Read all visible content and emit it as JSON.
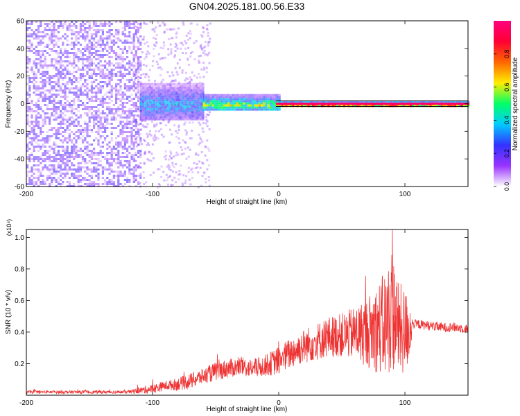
{
  "figure": {
    "title": "GN04.2025.181.00.56.E33"
  },
  "chart_data": [
    {
      "type": "heatmap",
      "title": "GN04.2025.181.00.56.E33",
      "xlabel": "Height of straight line (km)",
      "ylabel": "Frequency (Hz)",
      "xlim": [
        -200,
        150
      ],
      "ylim": [
        -60,
        60
      ],
      "x_ticks": [
        -200,
        -100,
        0,
        100
      ],
      "x_tick_labels": [
        "-200",
        "-100",
        "0",
        "100"
      ],
      "y_ticks": [
        -60,
        -40,
        -20,
        0,
        20,
        40,
        60
      ],
      "y_tick_labels": [
        "-60",
        "-40",
        "-20",
        "0",
        "20",
        "40",
        "60"
      ],
      "colorbar": {
        "label": "Normalized spectral amplitude",
        "range": [
          0,
          1
        ],
        "ticks": [
          0.0,
          0.2,
          0.4,
          0.6,
          0.8
        ],
        "tick_labels": [
          "0.0",
          "0.2",
          "0.4",
          "0.6",
          "0.8"
        ],
        "colormap": [
          "#ffffff",
          "#9933ff",
          "#3333ff",
          "#00ccff",
          "#00ff66",
          "#ffee00",
          "#ff6600",
          "#ff0033",
          "#ff0080"
        ]
      },
      "regions": [
        {
          "x_range": [
            -200,
            -110
          ],
          "freq_range": [
            -60,
            60
          ],
          "level": 0.15
        },
        {
          "x_range": [
            -110,
            -60
          ],
          "freq_range": [
            -12,
            15
          ],
          "level": 0.3
        },
        {
          "x_range": [
            -60,
            0
          ],
          "freq_range": [
            -5,
            7
          ],
          "level": 0.5
        },
        {
          "x_range": [
            0,
            150
          ],
          "freq_range": [
            -2,
            2
          ],
          "level": 0.9
        }
      ],
      "lines": [
        {
          "name": "carrier",
          "freq": 0,
          "color": "#ff0066"
        },
        {
          "name": "upper-bound",
          "freq": 2,
          "color": "#000000"
        },
        {
          "name": "lower-bound",
          "freq": -2,
          "color": "#000000"
        }
      ]
    },
    {
      "type": "line",
      "xlabel": "Height of straight line (km)",
      "ylabel": "SNR (10 * v/v)",
      "y_multiplier": "(x10⁴)",
      "xlim": [
        -200,
        150
      ],
      "ylim": [
        0,
        1.05
      ],
      "x_ticks": [
        -200,
        -100,
        0,
        100
      ],
      "x_tick_labels": [
        "-200",
        "-100",
        "0",
        "100"
      ],
      "y_ticks": [
        0.2,
        0.4,
        0.6,
        0.8,
        1.0
      ],
      "y_tick_labels": [
        "0.2",
        "0.4",
        "0.6",
        "0.8",
        "1.0"
      ],
      "color": "#ee3333",
      "series": [
        {
          "x": [
            -200,
            -180,
            -160,
            -140,
            -120,
            -110,
            -100,
            -90,
            -80,
            -70,
            -60,
            -50,
            -40,
            -30,
            -20,
            -10,
            0,
            10,
            20,
            30,
            40,
            50,
            60,
            70,
            80,
            85,
            90,
            95,
            100,
            104,
            106,
            110,
            120,
            130,
            140,
            150
          ],
          "values": [
            0.02,
            0.02,
            0.02,
            0.02,
            0.02,
            0.03,
            0.04,
            0.06,
            0.07,
            0.09,
            0.12,
            0.15,
            0.17,
            0.18,
            0.17,
            0.19,
            0.22,
            0.27,
            0.31,
            0.34,
            0.37,
            0.38,
            0.39,
            0.4,
            0.43,
            0.45,
            0.55,
            0.42,
            0.4,
            0.42,
            0.45,
            0.45,
            0.44,
            0.43,
            0.43,
            0.42
          ],
          "spread": [
            0.01,
            0.01,
            0.01,
            0.01,
            0.01,
            0.02,
            0.03,
            0.03,
            0.04,
            0.05,
            0.05,
            0.06,
            0.06,
            0.06,
            0.06,
            0.07,
            0.09,
            0.1,
            0.11,
            0.12,
            0.13,
            0.14,
            0.17,
            0.22,
            0.3,
            0.35,
            0.4,
            0.3,
            0.28,
            0.2,
            0.03,
            0.03,
            0.03,
            0.03,
            0.03,
            0.03
          ]
        }
      ]
    }
  ]
}
